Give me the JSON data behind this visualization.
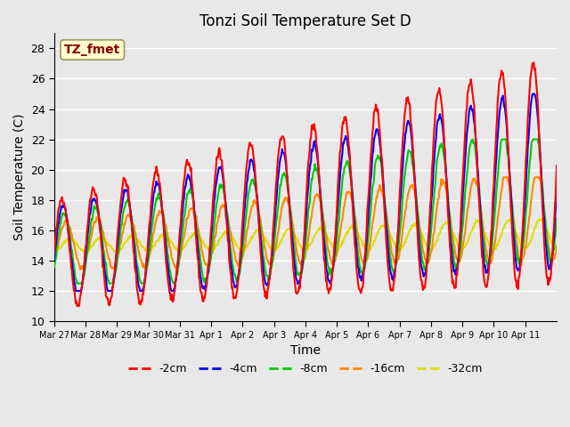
{
  "title": "Tonzi Soil Temperature Set D",
  "xlabel": "Time",
  "ylabel": "Soil Temperature (C)",
  "ylim": [
    10,
    29
  ],
  "yticks": [
    10,
    12,
    14,
    16,
    18,
    20,
    22,
    24,
    26,
    28
  ],
  "plot_bg_color": "#e8e8e8",
  "grid_color": "white",
  "annotation_text": "TZ_fmet",
  "annotation_color": "#8B0000",
  "annotation_bg": "#ffffcc",
  "series": {
    "-2cm": {
      "color": "#ff0000",
      "linewidth": 1.5
    },
    "-4cm": {
      "color": "#0000ff",
      "linewidth": 1.5
    },
    "-8cm": {
      "color": "#00cc00",
      "linewidth": 1.5
    },
    "-16cm": {
      "color": "#ff8800",
      "linewidth": 1.5
    },
    "-32cm": {
      "color": "#dddd00",
      "linewidth": 1.5
    }
  },
  "xtick_labels": [
    "Mar 27",
    "Mar 28",
    "Mar 29",
    "Mar 30",
    "Mar 31",
    "Apr 1",
    "Apr 2",
    "Apr 3",
    "Apr 4",
    "Apr 5",
    "Apr 6",
    "Apr 7",
    "Apr 8",
    "Apr 9",
    "Apr 10",
    "Apr 11"
  ],
  "num_days": 16,
  "points_per_day": 48
}
